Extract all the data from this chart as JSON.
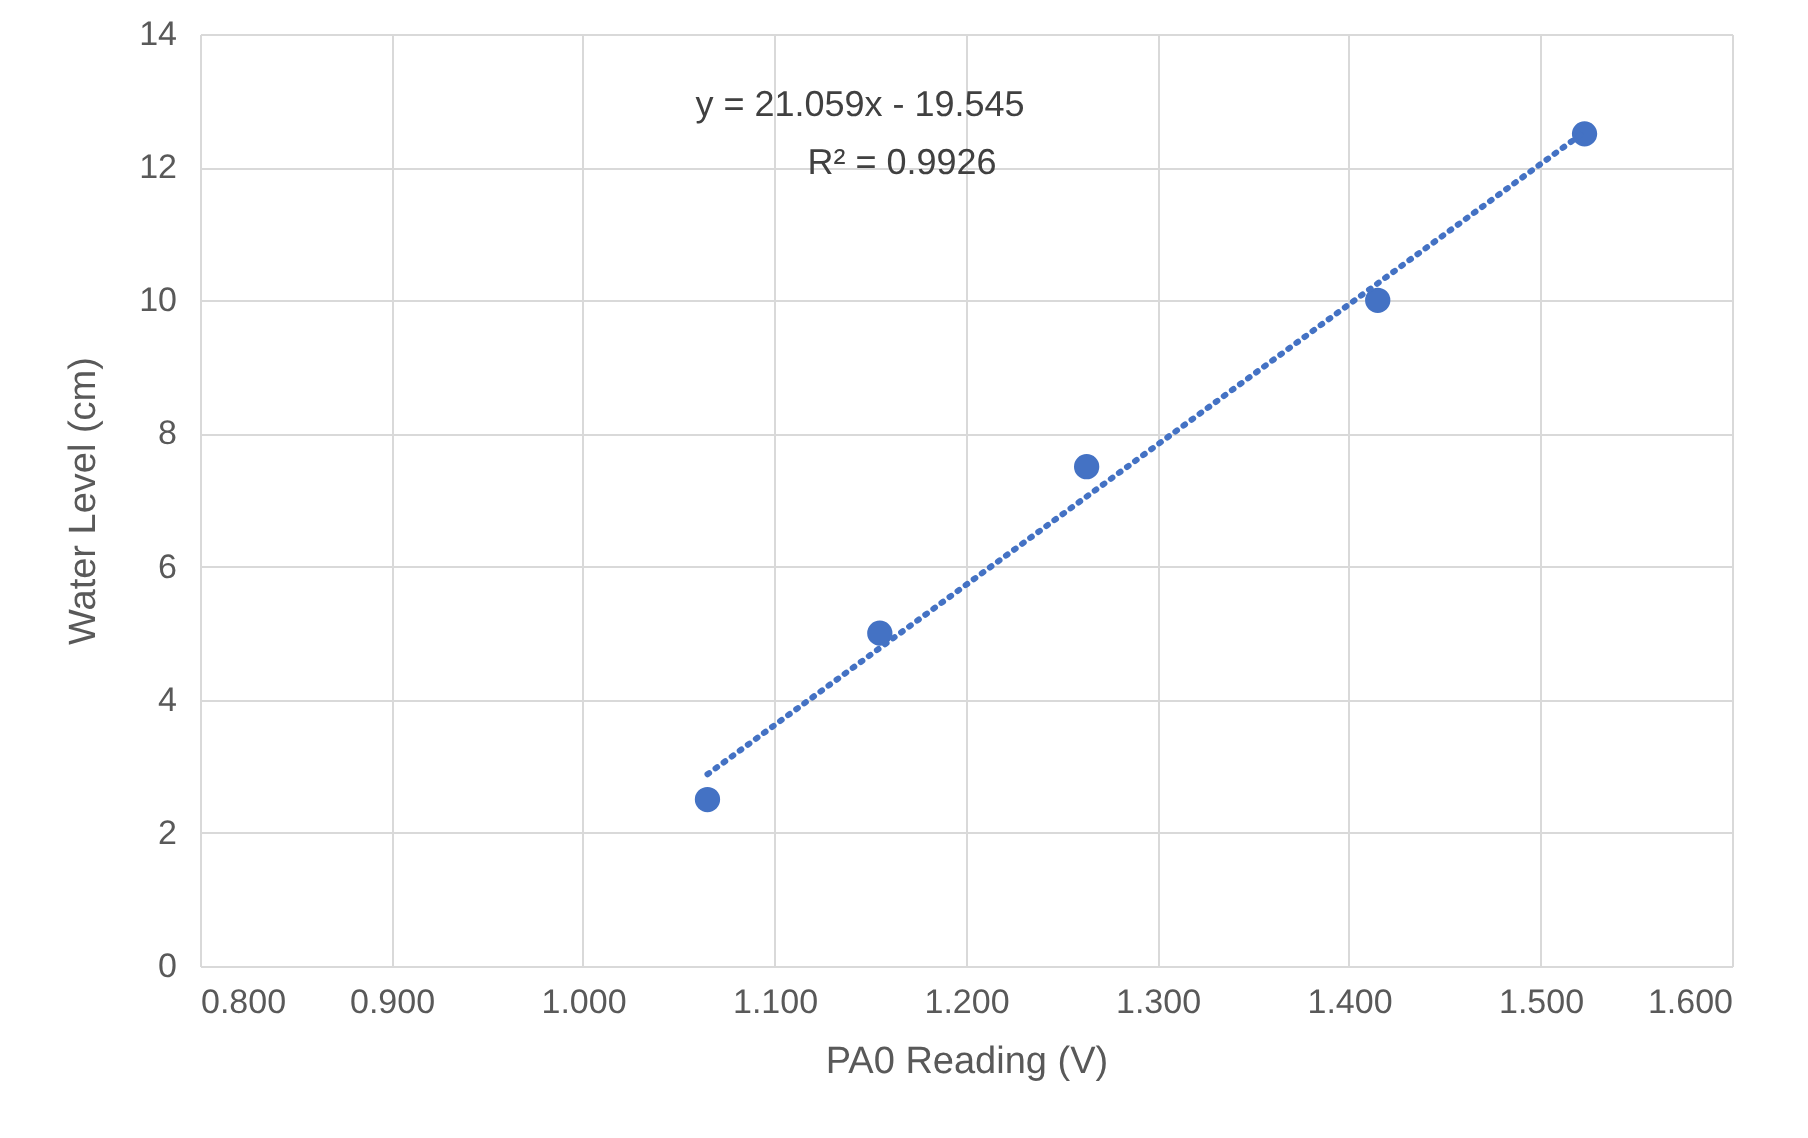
{
  "chart_data": {
    "type": "scatter",
    "xlabel": "PA0 Reading (V)",
    "ylabel": "Water Level (cm)",
    "x": [
      1.065,
      1.155,
      1.263,
      1.415,
      1.523
    ],
    "series": [
      {
        "color": "#4472c4",
        "marker": "circle",
        "values": [
          2.5,
          5,
          7.5,
          10,
          12.5
        ]
      },
      {
        "type": "line",
        "color": "#4472c4",
        "line_style": "dotted",
        "marker": "none",
        "x": [
          1.065,
          1.523
        ],
        "values": [
          2.88,
          12.53
        ]
      }
    ],
    "xlim": [
      0.8,
      1.6
    ],
    "xticks": [
      {
        "value": 0.8,
        "label": "0.800"
      },
      {
        "value": 0.9,
        "label": "0.900"
      },
      {
        "value": 1.0,
        "label": "1.000"
      },
      {
        "value": 1.1,
        "label": "1.100"
      },
      {
        "value": 1.2,
        "label": "1.200"
      },
      {
        "value": 1.3,
        "label": "1.300"
      },
      {
        "value": 1.4,
        "label": "1.400"
      },
      {
        "value": 1.5,
        "label": "1.500"
      },
      {
        "value": 1.6,
        "label": "1.600"
      }
    ],
    "ylim": [
      0,
      14
    ],
    "yticks": [
      0,
      2,
      4,
      6,
      8,
      10,
      12,
      14
    ],
    "grid": true,
    "annotations": [
      "y = 21.059x - 19.545",
      "R² = 0.9926"
    ]
  }
}
